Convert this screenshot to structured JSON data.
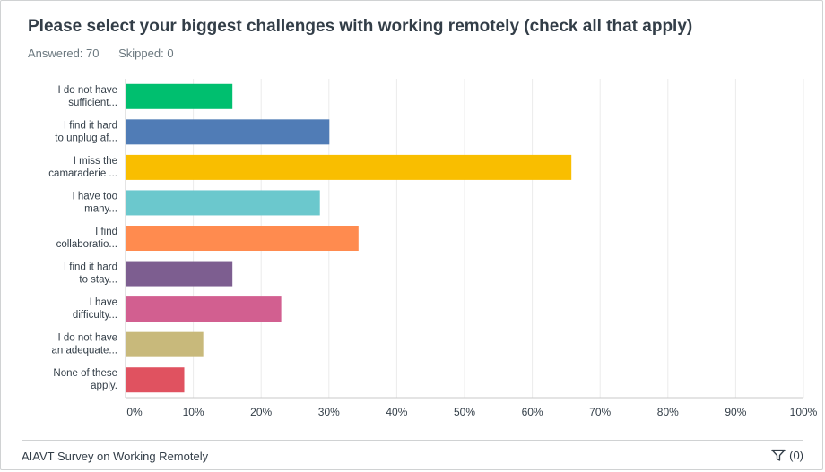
{
  "question": {
    "title": "Please select your biggest challenges with working remotely (check all that apply)",
    "answered": "Answered: 70",
    "skipped": "Skipped: 0"
  },
  "footer": {
    "survey_name": "AIAVT Survey on Working Remotely",
    "comment_count": "(0)",
    "filter_icon": "filter-icon"
  },
  "chart_data": {
    "type": "bar",
    "orientation": "horizontal",
    "categories": [
      [
        "I do not have",
        "sufficient..."
      ],
      [
        "I find it hard",
        "to unplug af..."
      ],
      [
        "I miss the",
        "camaraderie ..."
      ],
      [
        "I have too",
        "many..."
      ],
      [
        "I find",
        "collaboratio..."
      ],
      [
        "I find it hard",
        "to stay..."
      ],
      [
        "I have",
        "difficulty..."
      ],
      [
        "I do not have",
        "an adequate..."
      ],
      [
        "None of these",
        "apply."
      ]
    ],
    "values": [
      15.7,
      30.0,
      65.7,
      28.6,
      34.3,
      15.7,
      22.9,
      11.4,
      8.6
    ],
    "colors": [
      "#00bf6f",
      "#507cb6",
      "#f9be00",
      "#6bc8cd",
      "#ff8b4f",
      "#7d5e90",
      "#d25f90",
      "#c8b97b",
      "#e05260"
    ],
    "xlim": [
      0,
      100
    ],
    "xticks": [
      "0%",
      "10%",
      "20%",
      "30%",
      "40%",
      "50%",
      "60%",
      "70%",
      "80%",
      "90%",
      "100%"
    ],
    "grid": true,
    "legend": false,
    "colors_axis": {
      "grid": "#ebebeb",
      "axis": "#c9c9c9",
      "text": "#333e48"
    }
  }
}
